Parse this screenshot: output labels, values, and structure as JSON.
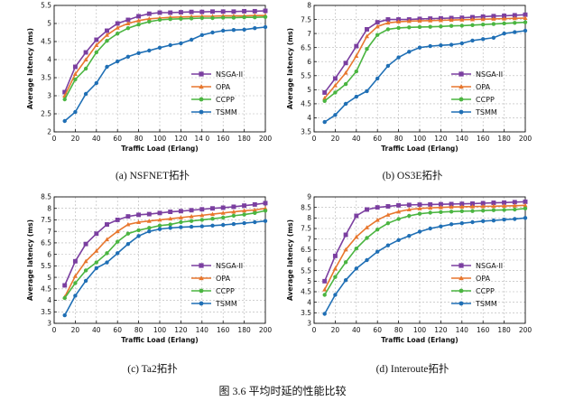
{
  "chart_data": [
    {
      "type": "line",
      "caption": "(a) NSFNET拓扑",
      "xlabel": "Traffic Load (Erlang)",
      "ylabel": "Average latency (ms)",
      "xlim": [
        0,
        200
      ],
      "ylim": [
        2,
        5.5
      ],
      "xticks": [
        0,
        20,
        40,
        60,
        80,
        100,
        120,
        140,
        160,
        180,
        200
      ],
      "xtick_labels": [
        "0",
        "20",
        "40",
        "60",
        "80",
        "100",
        "120",
        "14 0",
        "160",
        "180",
        "200"
      ],
      "yticks": [
        2,
        2.5,
        3,
        3.5,
        4,
        4.5,
        5,
        5.5
      ],
      "grid": true,
      "legend_position": "bottom-right",
      "x": [
        10,
        20,
        30,
        40,
        50,
        60,
        70,
        80,
        90,
        100,
        110,
        120,
        130,
        140,
        150,
        160,
        170,
        180,
        190,
        200
      ],
      "series": [
        {
          "name": "NSGA-II",
          "color": "#7b3fa0",
          "marker": "square",
          "values": [
            3.1,
            3.8,
            4.2,
            4.55,
            4.8,
            5.0,
            5.1,
            5.2,
            5.27,
            5.3,
            5.3,
            5.31,
            5.32,
            5.32,
            5.33,
            5.33,
            5.33,
            5.34,
            5.34,
            5.35
          ]
        },
        {
          "name": "OPA",
          "color": "#e8772e",
          "marker": "triangle",
          "values": [
            3.0,
            3.6,
            4.0,
            4.4,
            4.68,
            4.88,
            5.0,
            5.08,
            5.13,
            5.15,
            5.17,
            5.18,
            5.19,
            5.2,
            5.2,
            5.21,
            5.21,
            5.21,
            5.22,
            5.22
          ]
        },
        {
          "name": "CCPP",
          "color": "#4bb541",
          "marker": "circle",
          "values": [
            2.9,
            3.45,
            3.75,
            4.2,
            4.52,
            4.72,
            4.87,
            4.97,
            5.05,
            5.1,
            5.12,
            5.13,
            5.14,
            5.15,
            5.15,
            5.16,
            5.16,
            5.17,
            5.17,
            5.18
          ]
        },
        {
          "name": "TSMM",
          "color": "#1f6fb5",
          "marker": "circle",
          "values": [
            2.3,
            2.55,
            3.05,
            3.35,
            3.8,
            3.95,
            4.08,
            4.18,
            4.25,
            4.33,
            4.4,
            4.45,
            4.55,
            4.68,
            4.75,
            4.8,
            4.82,
            4.83,
            4.87,
            4.9
          ]
        }
      ]
    },
    {
      "type": "line",
      "caption": "(b) OS3E拓扑",
      "xlabel": "Traffic Load (Erlang)",
      "ylabel": "Average latency (ms)",
      "xlim": [
        0,
        200
      ],
      "ylim": [
        3.5,
        8
      ],
      "xticks": [
        0,
        20,
        40,
        60,
        80,
        100,
        120,
        140,
        160,
        180,
        200
      ],
      "xtick_labels": [
        "0",
        "20",
        "40",
        "60",
        "80",
        "100",
        "120",
        "140",
        "160",
        "180",
        "200"
      ],
      "yticks": [
        3.5,
        4,
        4.5,
        5,
        5.5,
        6,
        6.5,
        7,
        7.5,
        8
      ],
      "grid": true,
      "legend_position": "bottom-right",
      "x": [
        10,
        20,
        30,
        40,
        50,
        60,
        70,
        80,
        90,
        100,
        110,
        120,
        130,
        140,
        150,
        160,
        170,
        180,
        190,
        200
      ],
      "series": [
        {
          "name": "NSGA-II",
          "color": "#7b3fa0",
          "marker": "square",
          "values": [
            4.9,
            5.4,
            5.95,
            6.55,
            7.15,
            7.4,
            7.5,
            7.5,
            7.5,
            7.52,
            7.53,
            7.54,
            7.55,
            7.56,
            7.58,
            7.6,
            7.62,
            7.63,
            7.65,
            7.67
          ]
        },
        {
          "name": "OPA",
          "color": "#e8772e",
          "marker": "triangle",
          "values": [
            4.7,
            5.15,
            5.6,
            6.2,
            6.9,
            7.25,
            7.38,
            7.42,
            7.44,
            7.45,
            7.46,
            7.47,
            7.48,
            7.49,
            7.5,
            7.51,
            7.52,
            7.53,
            7.54,
            7.55
          ]
        },
        {
          "name": "CCPP",
          "color": "#4bb541",
          "marker": "circle",
          "values": [
            4.6,
            4.9,
            5.2,
            5.65,
            6.45,
            6.95,
            7.15,
            7.2,
            7.22,
            7.23,
            7.24,
            7.25,
            7.27,
            7.28,
            7.3,
            7.32,
            7.34,
            7.36,
            7.38,
            7.4
          ]
        },
        {
          "name": "TSMM",
          "color": "#1f6fb5",
          "marker": "circle",
          "values": [
            3.85,
            4.1,
            4.5,
            4.75,
            4.95,
            5.4,
            5.85,
            6.15,
            6.35,
            6.5,
            6.55,
            6.58,
            6.6,
            6.65,
            6.75,
            6.8,
            6.85,
            7.0,
            7.05,
            7.1
          ]
        }
      ]
    },
    {
      "type": "line",
      "caption": "(c) Ta2拓扑",
      "xlabel": "Traffic Load (Erlang)",
      "ylabel": "Average latency (ms)",
      "xlim": [
        0,
        200
      ],
      "ylim": [
        3,
        8.5
      ],
      "xticks": [
        0,
        20,
        40,
        60,
        80,
        100,
        120,
        140,
        160,
        180,
        200
      ],
      "xtick_labels": [
        "0",
        "20",
        "40",
        "60",
        "80",
        "100",
        "120",
        "140",
        "160",
        "180",
        "200"
      ],
      "yticks": [
        3,
        3.5,
        4,
        4.5,
        5,
        5.5,
        6,
        6.5,
        7,
        7.5,
        8,
        8.5
      ],
      "grid": true,
      "legend_position": "bottom-right",
      "x": [
        10,
        20,
        30,
        40,
        50,
        60,
        70,
        80,
        90,
        100,
        110,
        120,
        130,
        140,
        150,
        160,
        170,
        180,
        190,
        200
      ],
      "series": [
        {
          "name": "NSGA-II",
          "color": "#7b3fa0",
          "marker": "square",
          "values": [
            4.65,
            5.7,
            6.45,
            6.9,
            7.3,
            7.5,
            7.65,
            7.72,
            7.75,
            7.8,
            7.85,
            7.88,
            7.92,
            7.96,
            8.0,
            8.03,
            8.07,
            8.12,
            8.17,
            8.23
          ]
        },
        {
          "name": "OPA",
          "color": "#e8772e",
          "marker": "triangle",
          "values": [
            4.15,
            5.05,
            5.7,
            6.15,
            6.65,
            7.0,
            7.3,
            7.4,
            7.45,
            7.5,
            7.55,
            7.6,
            7.65,
            7.7,
            7.75,
            7.8,
            7.85,
            7.9,
            7.93,
            8.0
          ]
        },
        {
          "name": "CCPP",
          "color": "#4bb541",
          "marker": "circle",
          "values": [
            4.1,
            4.75,
            5.3,
            5.65,
            6.05,
            6.55,
            6.9,
            7.05,
            7.15,
            7.25,
            7.3,
            7.4,
            7.45,
            7.5,
            7.55,
            7.6,
            7.68,
            7.73,
            7.8,
            7.9
          ]
        },
        {
          "name": "TSMM",
          "color": "#1f6fb5",
          "marker": "circle",
          "values": [
            3.35,
            4.2,
            4.85,
            5.4,
            5.65,
            6.05,
            6.45,
            6.8,
            7.0,
            7.1,
            7.15,
            7.18,
            7.2,
            7.22,
            7.25,
            7.28,
            7.32,
            7.36,
            7.4,
            7.45
          ]
        }
      ]
    },
    {
      "type": "line",
      "caption": "(d) Interoute拓扑",
      "xlabel": "Traffic Load (Erlang)",
      "ylabel": "Average latency (ms)",
      "xlim": [
        0,
        200
      ],
      "ylim": [
        3,
        9
      ],
      "xticks": [
        0,
        20,
        40,
        60,
        80,
        100,
        120,
        140,
        160,
        180,
        200
      ],
      "xtick_labels": [
        "0",
        "20",
        "40",
        "60",
        "80",
        "100",
        "120",
        "140",
        "160",
        "180",
        "200"
      ],
      "yticks": [
        3,
        3.5,
        4,
        4.5,
        5,
        5.5,
        6,
        6.5,
        7,
        7.5,
        8,
        8.5,
        9
      ],
      "grid": true,
      "legend_position": "bottom-right",
      "x": [
        10,
        20,
        30,
        40,
        50,
        60,
        70,
        80,
        90,
        100,
        110,
        120,
        130,
        140,
        150,
        160,
        170,
        180,
        190,
        200
      ],
      "series": [
        {
          "name": "NSGA-II",
          "color": "#7b3fa0",
          "marker": "square",
          "values": [
            5.0,
            6.2,
            7.2,
            8.1,
            8.4,
            8.5,
            8.55,
            8.6,
            8.62,
            8.63,
            8.64,
            8.65,
            8.66,
            8.67,
            8.68,
            8.7,
            8.72,
            8.73,
            8.75,
            8.77
          ]
        },
        {
          "name": "OPA",
          "color": "#e8772e",
          "marker": "triangle",
          "values": [
            4.6,
            5.6,
            6.5,
            7.1,
            7.55,
            7.9,
            8.15,
            8.3,
            8.4,
            8.45,
            8.48,
            8.5,
            8.52,
            8.53,
            8.54,
            8.55,
            8.56,
            8.57,
            8.58,
            8.6
          ]
        },
        {
          "name": "CCPP",
          "color": "#4bb541",
          "marker": "circle",
          "values": [
            4.35,
            5.2,
            5.9,
            6.55,
            7.05,
            7.45,
            7.75,
            7.95,
            8.1,
            8.2,
            8.25,
            8.28,
            8.3,
            8.32,
            8.33,
            8.35,
            8.37,
            8.38,
            8.4,
            8.45
          ]
        },
        {
          "name": "TSMM",
          "color": "#1f6fb5",
          "marker": "circle",
          "values": [
            3.45,
            4.35,
            5.05,
            5.6,
            6.0,
            6.4,
            6.7,
            6.95,
            7.15,
            7.35,
            7.5,
            7.6,
            7.7,
            7.75,
            7.8,
            7.85,
            7.88,
            7.92,
            7.95,
            8.0
          ]
        }
      ]
    }
  ],
  "figure_caption": "图 3.6   平均时延的性能比较"
}
